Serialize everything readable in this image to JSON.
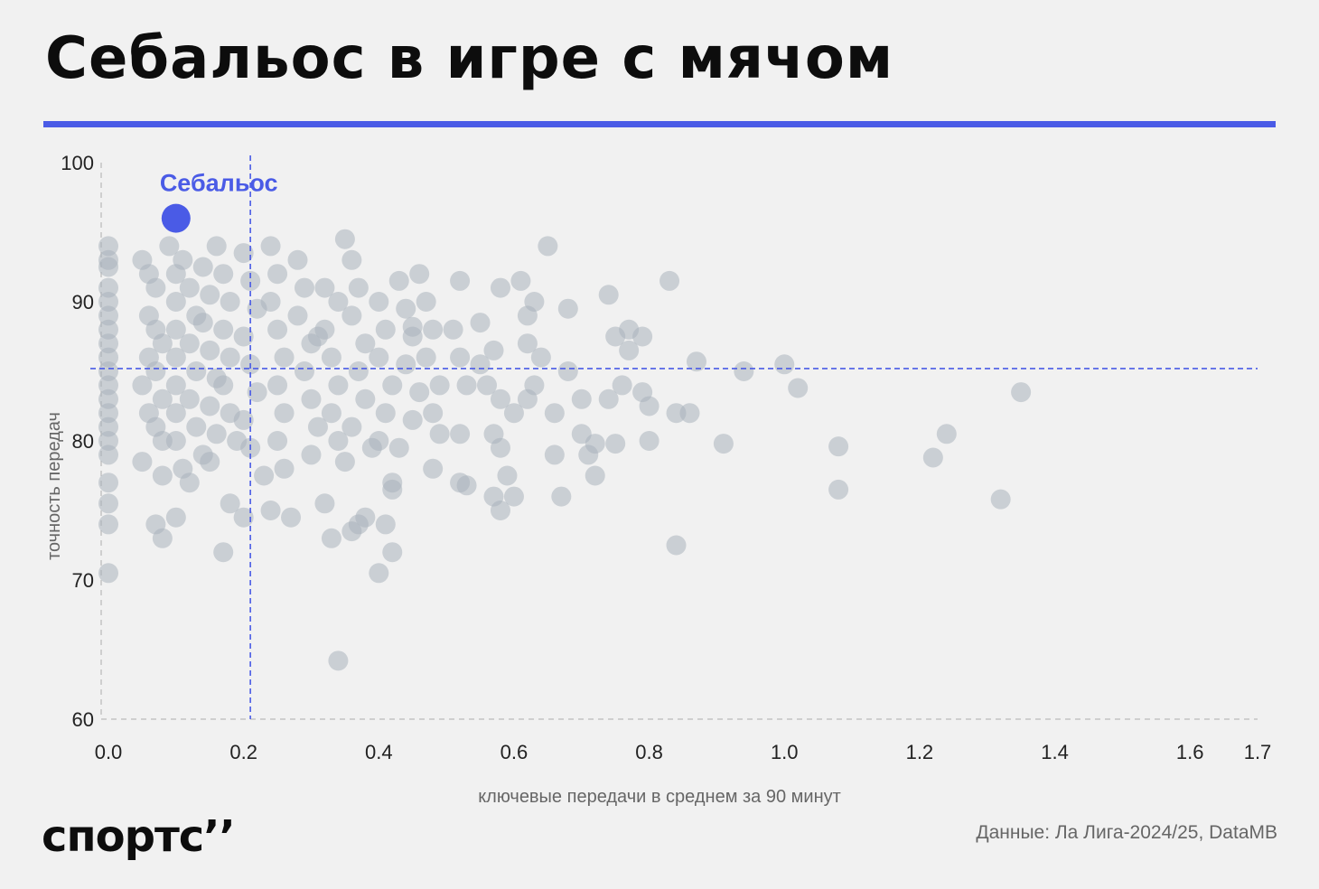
{
  "header": {
    "title": "Себальос в игре с мячом"
  },
  "footer": {
    "logo_text": "спортс’’",
    "source": "Данные: Ла Лига-2024/25, DataMB"
  },
  "colors": {
    "accent": "#4a5be6",
    "points": "#a9b3bc",
    "background": "#f1f1f1"
  },
  "chart_data": {
    "type": "scatter",
    "xlabel": "ключевые передачи в среднем за 90 минут",
    "ylabel": "точность передач",
    "xlim": [
      0,
      1.7
    ],
    "ylim": [
      60,
      100
    ],
    "x_ticks": [
      "0.0",
      "0.2",
      "0.4",
      "0.6",
      "0.8",
      "1.0",
      "1.2",
      "1.4",
      "1.6",
      "1.7"
    ],
    "x_tick_values": [
      0,
      0.2,
      0.4,
      0.6,
      0.8,
      1.0,
      1.2,
      1.4,
      1.6,
      1.7
    ],
    "y_ticks": [
      "60",
      "70",
      "80",
      "90",
      "100"
    ],
    "y_tick_values": [
      60,
      70,
      80,
      90,
      100
    ],
    "mean_x": 0.21,
    "mean_y": 85.2,
    "highlight": {
      "label": "Себальос",
      "x": 0.1,
      "y": 96.0
    },
    "points": [
      [
        0.0,
        94
      ],
      [
        0.0,
        92.5
      ],
      [
        0.0,
        91
      ],
      [
        0.0,
        90
      ],
      [
        0.0,
        89
      ],
      [
        0.0,
        88
      ],
      [
        0.0,
        87
      ],
      [
        0.0,
        86
      ],
      [
        0.0,
        85
      ],
      [
        0.0,
        84
      ],
      [
        0.0,
        83
      ],
      [
        0.0,
        82
      ],
      [
        0.0,
        81
      ],
      [
        0.0,
        80
      ],
      [
        0.0,
        79
      ],
      [
        0.0,
        77
      ],
      [
        0.0,
        75.5
      ],
      [
        0.0,
        74
      ],
      [
        0.0,
        70.5
      ],
      [
        0.0,
        93
      ],
      [
        0.05,
        93
      ],
      [
        0.06,
        92
      ],
      [
        0.07,
        91
      ],
      [
        0.06,
        89
      ],
      [
        0.07,
        88
      ],
      [
        0.08,
        87
      ],
      [
        0.06,
        86
      ],
      [
        0.07,
        85
      ],
      [
        0.05,
        84
      ],
      [
        0.08,
        83
      ],
      [
        0.06,
        82
      ],
      [
        0.07,
        81
      ],
      [
        0.08,
        80
      ],
      [
        0.05,
        78.5
      ],
      [
        0.08,
        77.5
      ],
      [
        0.07,
        74
      ],
      [
        0.08,
        73
      ],
      [
        0.1,
        74.5
      ],
      [
        0.09,
        94
      ],
      [
        0.1,
        92
      ],
      [
        0.1,
        90
      ],
      [
        0.1,
        88
      ],
      [
        0.1,
        86
      ],
      [
        0.1,
        84
      ],
      [
        0.1,
        82
      ],
      [
        0.1,
        80
      ],
      [
        0.11,
        78
      ],
      [
        0.12,
        77
      ],
      [
        0.11,
        93
      ],
      [
        0.12,
        91
      ],
      [
        0.13,
        89
      ],
      [
        0.12,
        87
      ],
      [
        0.13,
        85
      ],
      [
        0.12,
        83
      ],
      [
        0.13,
        81
      ],
      [
        0.14,
        79
      ],
      [
        0.14,
        92.5
      ],
      [
        0.15,
        90.5
      ],
      [
        0.14,
        88.5
      ],
      [
        0.15,
        86.5
      ],
      [
        0.16,
        84.5
      ],
      [
        0.15,
        82.5
      ],
      [
        0.16,
        80.5
      ],
      [
        0.15,
        78.5
      ],
      [
        0.16,
        94
      ],
      [
        0.17,
        92
      ],
      [
        0.18,
        90
      ],
      [
        0.17,
        88
      ],
      [
        0.18,
        86
      ],
      [
        0.17,
        84
      ],
      [
        0.18,
        82
      ],
      [
        0.19,
        80
      ],
      [
        0.18,
        75.5
      ],
      [
        0.2,
        74.5
      ],
      [
        0.17,
        72
      ],
      [
        0.2,
        93.5
      ],
      [
        0.21,
        91.5
      ],
      [
        0.22,
        89.5
      ],
      [
        0.2,
        87.5
      ],
      [
        0.21,
        85.5
      ],
      [
        0.22,
        83.5
      ],
      [
        0.2,
        81.5
      ],
      [
        0.21,
        79.5
      ],
      [
        0.23,
        77.5
      ],
      [
        0.24,
        75
      ],
      [
        0.24,
        94
      ],
      [
        0.25,
        92
      ],
      [
        0.24,
        90
      ],
      [
        0.25,
        88
      ],
      [
        0.26,
        86
      ],
      [
        0.25,
        84
      ],
      [
        0.26,
        82
      ],
      [
        0.25,
        80
      ],
      [
        0.26,
        78
      ],
      [
        0.27,
        74.5
      ],
      [
        0.28,
        93
      ],
      [
        0.29,
        91
      ],
      [
        0.28,
        89
      ],
      [
        0.3,
        87
      ],
      [
        0.29,
        85
      ],
      [
        0.3,
        83
      ],
      [
        0.31,
        81
      ],
      [
        0.3,
        79
      ],
      [
        0.32,
        75.5
      ],
      [
        0.31,
        87.5
      ],
      [
        0.32,
        88
      ],
      [
        0.33,
        86
      ],
      [
        0.34,
        84
      ],
      [
        0.33,
        82
      ],
      [
        0.34,
        80
      ],
      [
        0.35,
        78.5
      ],
      [
        0.32,
        91
      ],
      [
        0.34,
        90
      ],
      [
        0.35,
        94.5
      ],
      [
        0.36,
        93
      ],
      [
        0.37,
        91
      ],
      [
        0.36,
        89
      ],
      [
        0.38,
        87
      ],
      [
        0.37,
        85
      ],
      [
        0.38,
        83
      ],
      [
        0.36,
        81
      ],
      [
        0.39,
        79.5
      ],
      [
        0.37,
        74
      ],
      [
        0.36,
        73.5
      ],
      [
        0.33,
        73
      ],
      [
        0.38,
        74.5
      ],
      [
        0.4,
        90
      ],
      [
        0.41,
        88
      ],
      [
        0.4,
        86
      ],
      [
        0.42,
        84
      ],
      [
        0.41,
        82
      ],
      [
        0.4,
        80
      ],
      [
        0.42,
        77
      ],
      [
        0.42,
        76.5
      ],
      [
        0.41,
        74
      ],
      [
        0.42,
        72
      ],
      [
        0.4,
        70.5
      ],
      [
        0.34,
        64.2
      ],
      [
        0.43,
        91.5
      ],
      [
        0.44,
        89.5
      ],
      [
        0.45,
        87.5
      ],
      [
        0.44,
        85.5
      ],
      [
        0.46,
        83.5
      ],
      [
        0.45,
        81.5
      ],
      [
        0.43,
        79.5
      ],
      [
        0.46,
        92
      ],
      [
        0.47,
        90
      ],
      [
        0.48,
        88
      ],
      [
        0.47,
        86
      ],
      [
        0.49,
        84
      ],
      [
        0.48,
        82
      ],
      [
        0.49,
        80.5
      ],
      [
        0.48,
        78
      ],
      [
        0.52,
        91.5
      ],
      [
        0.51,
        88
      ],
      [
        0.52,
        86
      ],
      [
        0.53,
        84
      ],
      [
        0.52,
        80.5
      ],
      [
        0.52,
        77
      ],
      [
        0.55,
        85.5
      ],
      [
        0.56,
        84
      ],
      [
        0.57,
        86.5
      ],
      [
        0.58,
        83
      ],
      [
        0.57,
        80.5
      ],
      [
        0.58,
        79.5
      ],
      [
        0.59,
        77.5
      ],
      [
        0.57,
        76
      ],
      [
        0.58,
        75
      ],
      [
        0.6,
        76
      ],
      [
        0.6,
        82
      ],
      [
        0.58,
        91
      ],
      [
        0.62,
        89
      ],
      [
        0.63,
        90
      ],
      [
        0.62,
        87
      ],
      [
        0.64,
        86
      ],
      [
        0.63,
        84
      ],
      [
        0.62,
        83
      ],
      [
        0.65,
        94
      ],
      [
        0.66,
        82
      ],
      [
        0.66,
        79
      ],
      [
        0.67,
        76
      ],
      [
        0.68,
        85
      ],
      [
        0.68,
        89.5
      ],
      [
        0.7,
        83
      ],
      [
        0.7,
        80.5
      ],
      [
        0.71,
        79
      ],
      [
        0.72,
        77.5
      ],
      [
        0.72,
        79.8
      ],
      [
        0.75,
        79.8
      ],
      [
        0.74,
        83
      ],
      [
        0.74,
        90.5
      ],
      [
        0.75,
        87.5
      ],
      [
        0.76,
        84
      ],
      [
        0.77,
        86.5
      ],
      [
        0.77,
        88
      ],
      [
        0.79,
        87.5
      ],
      [
        0.79,
        83.5
      ],
      [
        0.8,
        82.5
      ],
      [
        0.8,
        80
      ],
      [
        0.83,
        91.5
      ],
      [
        0.84,
        72.5
      ],
      [
        0.84,
        82
      ],
      [
        0.86,
        82
      ],
      [
        0.87,
        85.7
      ],
      [
        0.91,
        79.8
      ],
      [
        0.94,
        85
      ],
      [
        1.0,
        85.5
      ],
      [
        1.02,
        83.8
      ],
      [
        1.08,
        79.6
      ],
      [
        1.08,
        76.5
      ],
      [
        1.22,
        78.8
      ],
      [
        1.24,
        80.5
      ],
      [
        1.32,
        75.8
      ],
      [
        1.35,
        83.5
      ],
      [
        0.53,
        76.8
      ],
      [
        0.61,
        91.5
      ],
      [
        0.45,
        88.2
      ],
      [
        0.55,
        88.5
      ]
    ]
  }
}
